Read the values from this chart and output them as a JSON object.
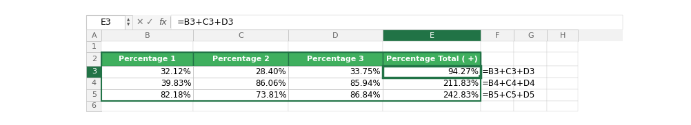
{
  "formula_bar_cell": "E3",
  "formula_bar_formula": "=B3+C3+D3",
  "col_letters": [
    "A",
    "B",
    "C",
    "D",
    "E",
    "F",
    "G",
    "H"
  ],
  "headers": [
    "Percentage 1",
    "Percentage 2",
    "Percentage 3",
    "Percentage Total ( +)"
  ],
  "data_rows": [
    [
      "32.12%",
      "28.40%",
      "33.75%",
      "94.27%"
    ],
    [
      "39.83%",
      "86.06%",
      "85.94%",
      "211.83%"
    ],
    [
      "82.18%",
      "73.81%",
      "86.84%",
      "242.83%"
    ]
  ],
  "formulas": [
    "=B3+C3+D3",
    "=B4+C4+D4",
    "=B5+C5+D5"
  ],
  "header_bg": "#3faf5e",
  "header_text": "#ffffff",
  "grid_color": "#b0b0b0",
  "dark_green": "#217346",
  "selected_col_header_bg": "#217346",
  "col_header_bg": "#f2f2f2",
  "row_header_bg": "#f2f2f2",
  "formula_bar_bg": "#ffffff",
  "bg": "#ffffff",
  "formula_right_bg": "#ffffff",
  "e_col_data_bg": "#ffffff",
  "formula_text_color": "#000000",
  "icon_color": "#777777"
}
